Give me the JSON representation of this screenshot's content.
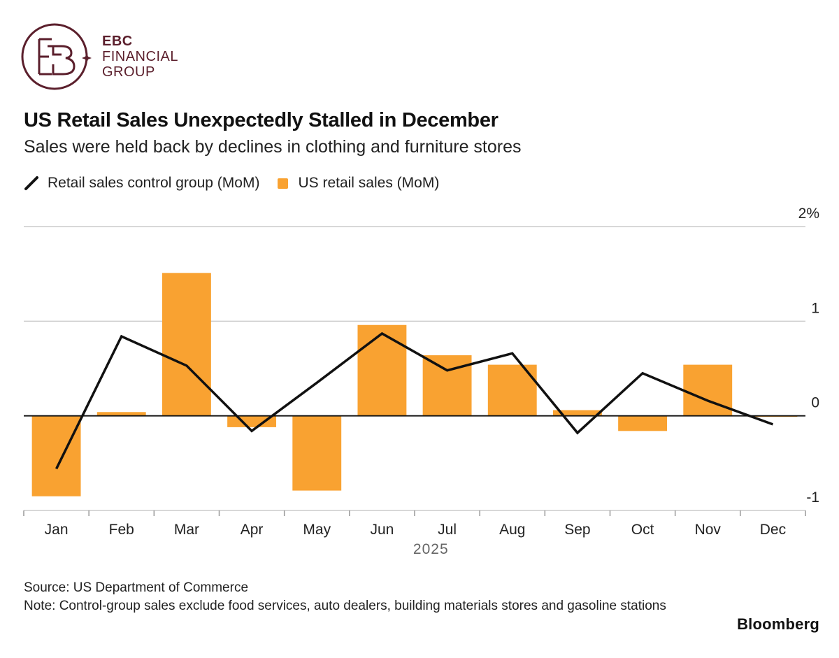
{
  "brand_logo": {
    "line1": "EBC",
    "line2": "FINANCIAL",
    "line3": "GROUP",
    "color": "#5b1f2c"
  },
  "chart_data": {
    "type": "bar",
    "title": "US Retail Sales Unexpectedly Stalled in December",
    "subtitle": "Sales were held back by declines in clothing and furniture stores",
    "categories": [
      "Jan",
      "Feb",
      "Mar",
      "Apr",
      "May",
      "Jun",
      "Jul",
      "Aug",
      "Sep",
      "Oct",
      "Nov",
      "Dec"
    ],
    "xlabel": "2025",
    "ylabel": "",
    "ylim": [
      -1.0,
      2.0
    ],
    "yticks": [
      {
        "value": 2,
        "label": "2%"
      },
      {
        "value": 1,
        "label": "1"
      },
      {
        "value": 0,
        "label": "0"
      },
      {
        "value": -1,
        "label": "-1"
      }
    ],
    "legend_position": "top-left",
    "series": [
      {
        "name": "US retail sales (MoM)",
        "kind": "bar",
        "color": "#f9a231",
        "values": [
          -0.85,
          0.04,
          1.51,
          -0.12,
          -0.79,
          0.96,
          0.64,
          0.54,
          0.06,
          -0.16,
          0.54,
          -0.01
        ]
      },
      {
        "name": "Retail sales control group (MoM)",
        "kind": "line",
        "color": "#111111",
        "values": [
          -0.56,
          0.84,
          0.53,
          -0.16,
          0.35,
          0.87,
          0.48,
          0.66,
          -0.18,
          0.45,
          0.16,
          -0.09
        ]
      }
    ]
  },
  "legend": {
    "line_label": "Retail sales control group (MoM)",
    "bar_label": "US retail sales (MoM)"
  },
  "footer": {
    "source": "Source: US Department of Commerce",
    "note": "Note: Control-group sales exclude food services, auto dealers, building materials stores and gasoline stations"
  },
  "brand": "Bloomberg"
}
